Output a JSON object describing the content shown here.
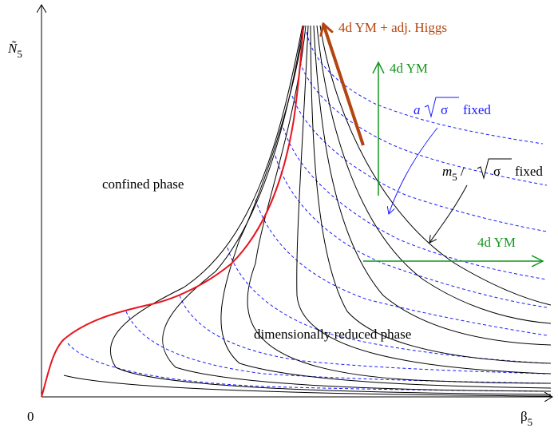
{
  "axes": {
    "y_label_main": "Ñ",
    "y_label_sub": "5",
    "x_label_main": "β",
    "x_label_sub": "5",
    "origin_label": "0"
  },
  "regions": {
    "confined": "confined phase",
    "reduced": "dimensionally reduced phase"
  },
  "annotations": {
    "ym_higgs": "4d YM + adj. Higgs",
    "ym_vertical": "4d YM",
    "ym_horizontal": "4d YM",
    "a_sigma": {
      "prefix": "a",
      "sqrt_arg": "σ",
      "suffix": "fixed"
    },
    "m5_sigma": {
      "prefix": "m",
      "prefix_sub": "5",
      "slash": " / ",
      "sqrt_arg": "σ",
      "suffix": "fixed"
    }
  },
  "colors": {
    "axis": "#000000",
    "solid_curves": "#000000",
    "dashed_curves": "#1a1aff",
    "phase_boundary": "#e8141e",
    "higgs_arrow": "#b5450f",
    "ym_arrow": "#14961e"
  }
}
